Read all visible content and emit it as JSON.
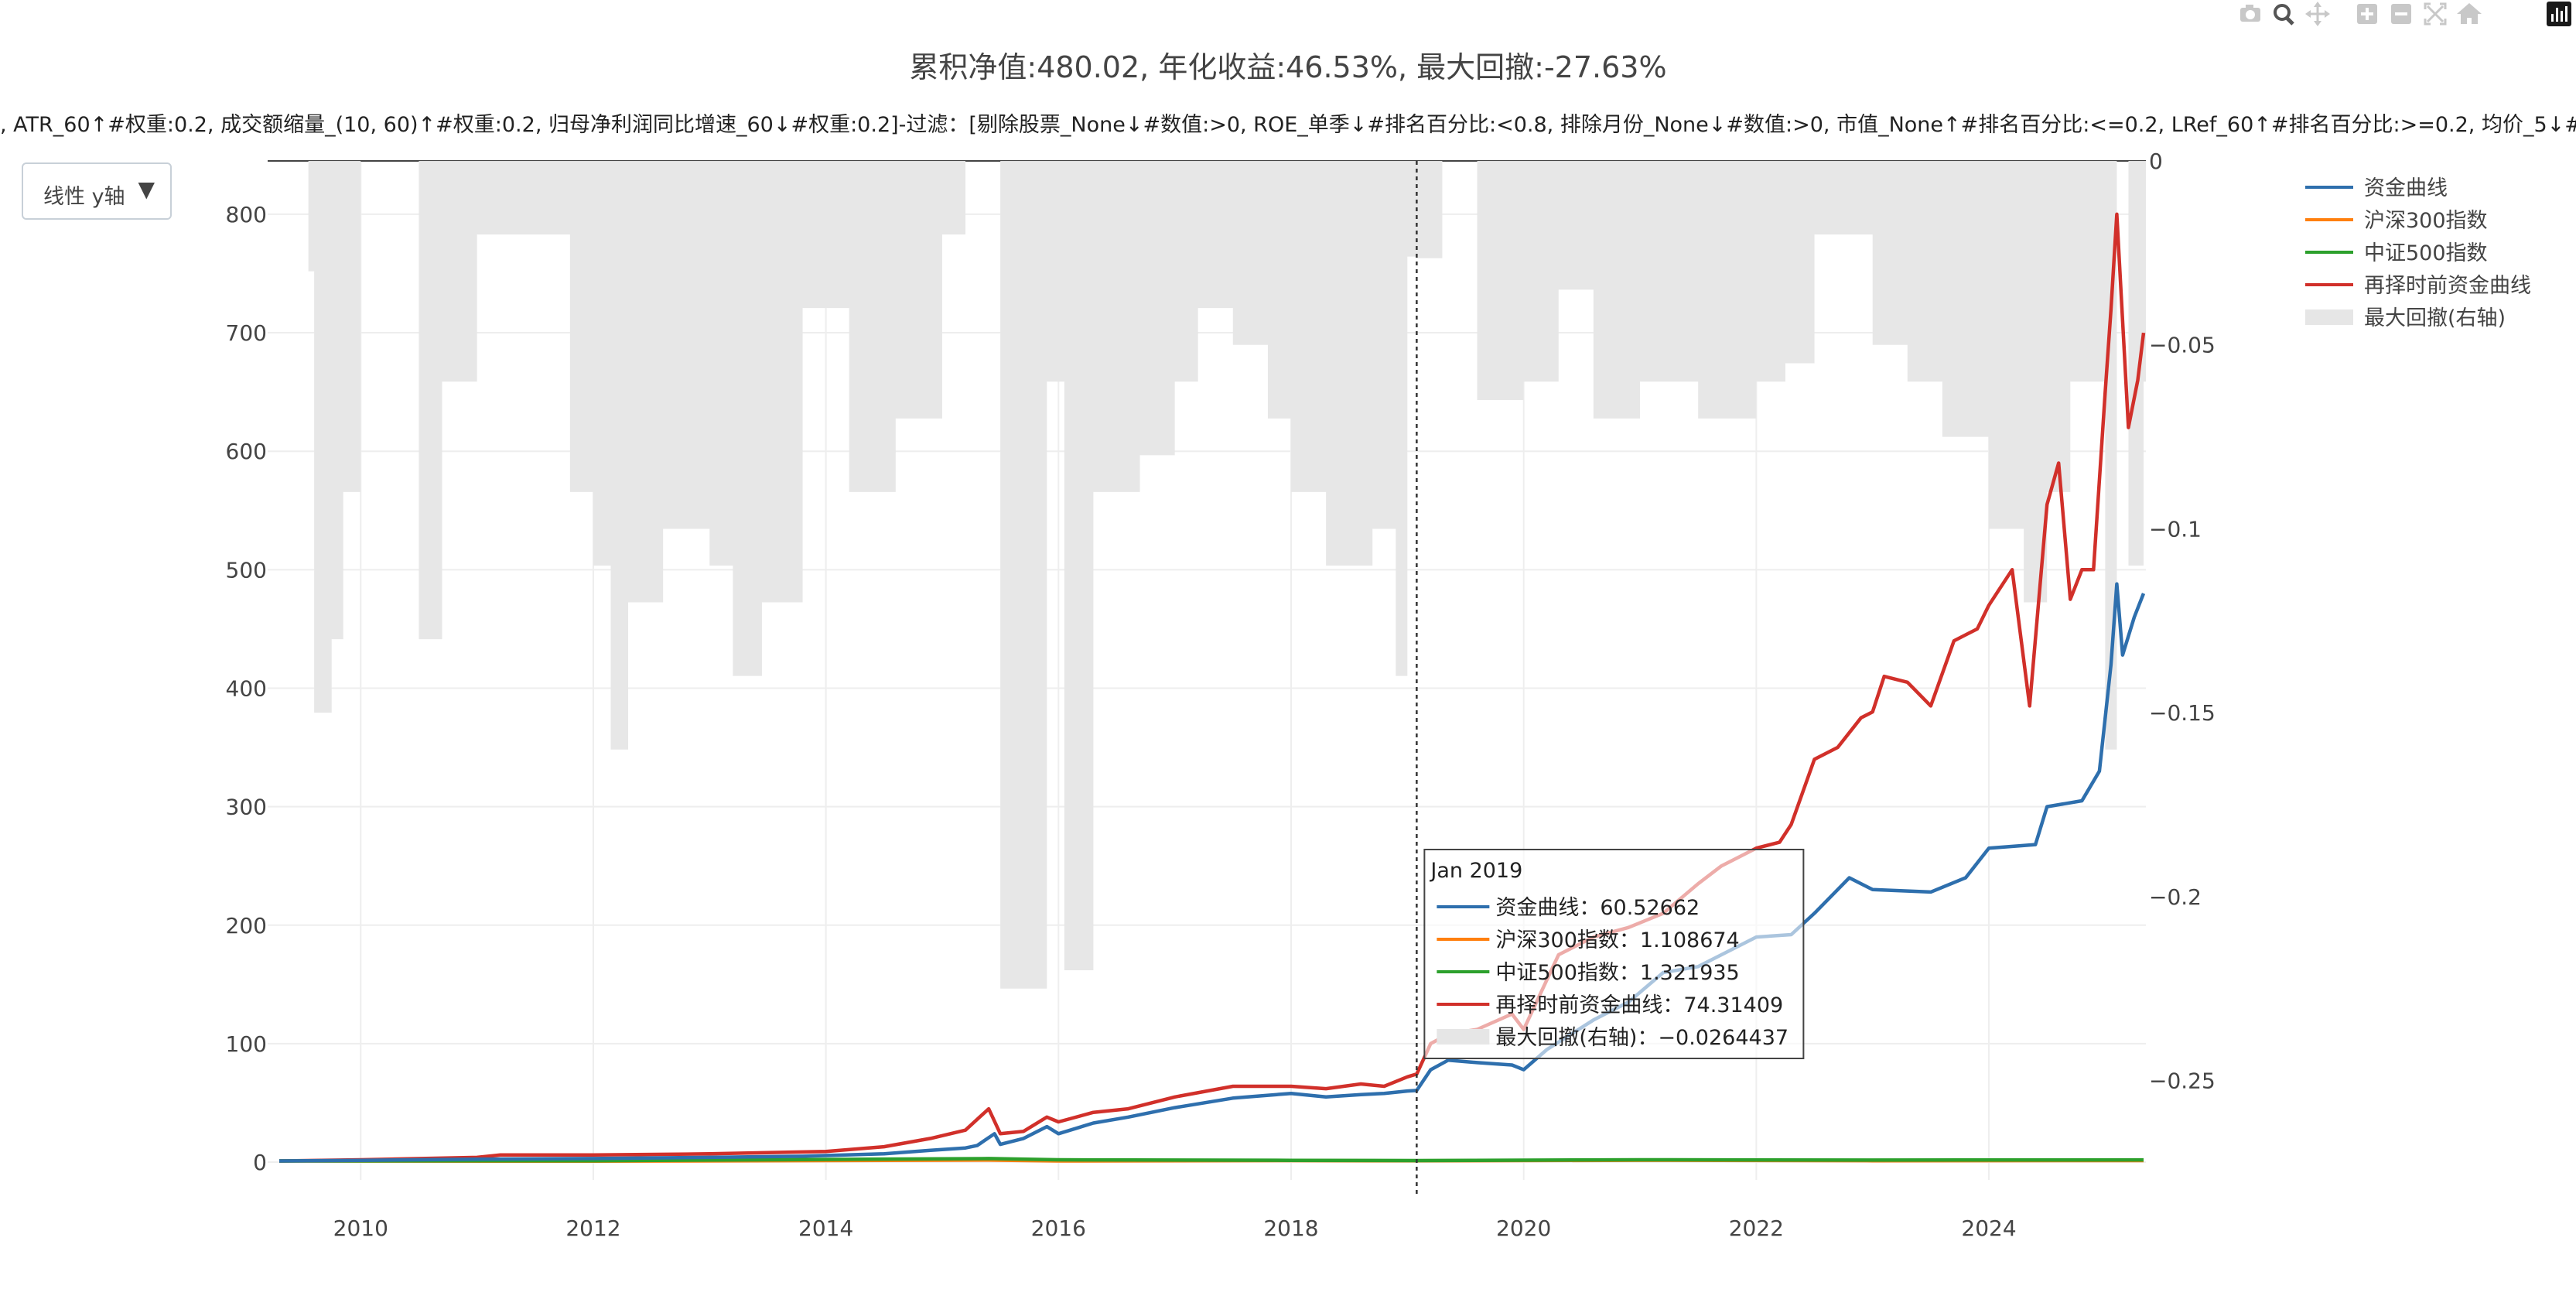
{
  "title": "累积净值:480.02, 年化收益:46.53%, 最大回撤:-27.63%",
  "subtitle": ", ATR_60↑#权重:0.2, 成交额缩量_(10, 60)↑#权重:0.2, 归母净利润同比增速_60↓#权重:0.2]-过滤：[剔除股票_None↓#数值:>0, ROE_单季↓#排名百分比:<0.8, 排除月份_None↓#数值:>0, 市值_None↑#排名百分比:<=0.2, LRef_60↑#排名百分比:>=0.2, 均价_5↓#数值",
  "dropdown": {
    "label": "线性 y轴",
    "arrow": "▼"
  },
  "modebar_icons": [
    "camera-icon",
    "zoom-icon",
    "pan-icon",
    "zoom-in-icon",
    "zoom-out-icon",
    "autoscale-icon",
    "reset-axes-icon",
    "plotly-logo-icon"
  ],
  "chart_data": {
    "type": "line",
    "x_axis": {
      "range": [
        2009.2,
        2025.35
      ],
      "ticks": [
        2010,
        2012,
        2014,
        2016,
        2018,
        2020,
        2022,
        2024
      ]
    },
    "y_axis_left": {
      "range": [
        -15,
        845
      ],
      "ticks": [
        0,
        100,
        200,
        300,
        400,
        500,
        600,
        700,
        800
      ]
    },
    "y_axis_right": {
      "range": [
        -0.277,
        0
      ],
      "ticks": [
        0,
        -0.05,
        -0.1,
        -0.15,
        -0.2,
        -0.25
      ],
      "tick_labels": [
        "0",
        "−0.05",
        "−0.1",
        "−0.15",
        "−0.2",
        "−0.25"
      ]
    },
    "grid": true,
    "legend_position": "top-right",
    "series": [
      {
        "name": "资金曲线",
        "color": "#2e6fad",
        "points": [
          [
            2009.3,
            1
          ],
          [
            2010.0,
            1.5
          ],
          [
            2011.0,
            2.5
          ],
          [
            2012.0,
            3
          ],
          [
            2013.0,
            4
          ],
          [
            2013.8,
            5
          ],
          [
            2014.5,
            7
          ],
          [
            2014.9,
            10
          ],
          [
            2015.2,
            12
          ],
          [
            2015.3,
            14
          ],
          [
            2015.45,
            24
          ],
          [
            2015.5,
            15
          ],
          [
            2015.7,
            20
          ],
          [
            2015.9,
            30
          ],
          [
            2016.0,
            24
          ],
          [
            2016.3,
            33
          ],
          [
            2016.6,
            38
          ],
          [
            2017.0,
            46
          ],
          [
            2017.5,
            54
          ],
          [
            2018.0,
            58
          ],
          [
            2018.3,
            55
          ],
          [
            2018.6,
            57
          ],
          [
            2018.8,
            58
          ],
          [
            2019.0,
            60
          ],
          [
            2019.08,
            60.5
          ],
          [
            2019.2,
            78
          ],
          [
            2019.35,
            86
          ],
          [
            2019.6,
            84
          ],
          [
            2019.9,
            82
          ],
          [
            2020.0,
            78
          ],
          [
            2020.2,
            95
          ],
          [
            2020.6,
            120
          ],
          [
            2020.9,
            135
          ],
          [
            2021.2,
            160
          ],
          [
            2021.5,
            165
          ],
          [
            2021.7,
            175
          ],
          [
            2022.0,
            190
          ],
          [
            2022.3,
            192
          ],
          [
            2022.5,
            210
          ],
          [
            2022.8,
            240
          ],
          [
            2023.0,
            230
          ],
          [
            2023.5,
            228
          ],
          [
            2023.8,
            240
          ],
          [
            2024.0,
            265
          ],
          [
            2024.4,
            268
          ],
          [
            2024.5,
            300
          ],
          [
            2024.8,
            305
          ],
          [
            2024.95,
            330
          ],
          [
            2025.05,
            420
          ],
          [
            2025.1,
            488
          ],
          [
            2025.15,
            428
          ],
          [
            2025.25,
            460
          ],
          [
            2025.33,
            480
          ]
        ]
      },
      {
        "name": "沪深300指数",
        "color": "#ff7f0e",
        "points": [
          [
            2009.3,
            1.0
          ],
          [
            2012.0,
            0.8
          ],
          [
            2015.4,
            1.7
          ],
          [
            2016.0,
            1.0
          ],
          [
            2018.0,
            1.3
          ],
          [
            2019.08,
            1.108674
          ],
          [
            2021.0,
            1.6
          ],
          [
            2023.0,
            1.2
          ],
          [
            2025.33,
            1.3
          ]
        ]
      },
      {
        "name": "中证500指数",
        "color": "#2ca02c",
        "points": [
          [
            2009.3,
            1.0
          ],
          [
            2012.0,
            1.2
          ],
          [
            2015.4,
            3.0
          ],
          [
            2016.0,
            2.0
          ],
          [
            2018.0,
            1.5
          ],
          [
            2019.08,
            1.321935
          ],
          [
            2021.0,
            2.0
          ],
          [
            2023.0,
            1.7
          ],
          [
            2025.33,
            1.9
          ]
        ]
      },
      {
        "name": "再择时前资金曲线",
        "color": "#d1302a",
        "points": [
          [
            2009.3,
            1
          ],
          [
            2010.0,
            2
          ],
          [
            2011.0,
            4
          ],
          [
            2011.2,
            6
          ],
          [
            2012.0,
            6
          ],
          [
            2013.0,
            7
          ],
          [
            2014.0,
            9
          ],
          [
            2014.5,
            13
          ],
          [
            2014.9,
            20
          ],
          [
            2015.2,
            27
          ],
          [
            2015.4,
            45
          ],
          [
            2015.5,
            24
          ],
          [
            2015.7,
            26
          ],
          [
            2015.9,
            38
          ],
          [
            2016.0,
            34
          ],
          [
            2016.3,
            42
          ],
          [
            2016.6,
            45
          ],
          [
            2017.0,
            55
          ],
          [
            2017.5,
            64
          ],
          [
            2018.0,
            64
          ],
          [
            2018.3,
            62
          ],
          [
            2018.6,
            66
          ],
          [
            2018.8,
            64
          ],
          [
            2019.0,
            72
          ],
          [
            2019.08,
            74.3
          ],
          [
            2019.2,
            100
          ],
          [
            2019.35,
            108
          ],
          [
            2019.6,
            112
          ],
          [
            2019.9,
            125
          ],
          [
            2020.0,
            112
          ],
          [
            2020.3,
            175
          ],
          [
            2020.6,
            190
          ],
          [
            2020.9,
            198
          ],
          [
            2021.2,
            210
          ],
          [
            2021.5,
            235
          ],
          [
            2021.7,
            250
          ],
          [
            2022.0,
            265
          ],
          [
            2022.2,
            270
          ],
          [
            2022.3,
            285
          ],
          [
            2022.5,
            340
          ],
          [
            2022.7,
            350
          ],
          [
            2022.9,
            375
          ],
          [
            2023.0,
            380
          ],
          [
            2023.1,
            410
          ],
          [
            2023.3,
            405
          ],
          [
            2023.5,
            385
          ],
          [
            2023.7,
            440
          ],
          [
            2023.9,
            450
          ],
          [
            2024.0,
            470
          ],
          [
            2024.2,
            500
          ],
          [
            2024.35,
            385
          ],
          [
            2024.5,
            555
          ],
          [
            2024.6,
            590
          ],
          [
            2024.7,
            475
          ],
          [
            2024.8,
            500
          ],
          [
            2024.9,
            500
          ],
          [
            2025.0,
            650
          ],
          [
            2025.05,
            720
          ],
          [
            2025.1,
            800
          ],
          [
            2025.2,
            620
          ],
          [
            2025.28,
            660
          ],
          [
            2025.33,
            700
          ]
        ]
      },
      {
        "name": "最大回撤(右轴)",
        "color": "#e6e6e6",
        "points": [
          [
            2009.3,
            0
          ],
          [
            2009.55,
            -0.03
          ],
          [
            2009.6,
            -0.15
          ],
          [
            2009.75,
            -0.13
          ],
          [
            2009.85,
            -0.09
          ],
          [
            2010.0,
            0
          ],
          [
            2010.5,
            -0.13
          ],
          [
            2010.7,
            -0.06
          ],
          [
            2011.0,
            -0.02
          ],
          [
            2011.4,
            -0.02
          ],
          [
            2011.8,
            -0.09
          ],
          [
            2012.0,
            -0.11
          ],
          [
            2012.15,
            -0.16
          ],
          [
            2012.3,
            -0.12
          ],
          [
            2012.6,
            -0.1
          ],
          [
            2013.0,
            -0.11
          ],
          [
            2013.2,
            -0.14
          ],
          [
            2013.45,
            -0.12
          ],
          [
            2013.8,
            -0.04
          ],
          [
            2014.2,
            -0.09
          ],
          [
            2014.6,
            -0.07
          ],
          [
            2015.0,
            -0.02
          ],
          [
            2015.2,
            0
          ],
          [
            2015.5,
            -0.225
          ],
          [
            2015.9,
            -0.06
          ],
          [
            2016.05,
            -0.22
          ],
          [
            2016.3,
            -0.09
          ],
          [
            2016.7,
            -0.08
          ],
          [
            2017.0,
            -0.06
          ],
          [
            2017.2,
            -0.04
          ],
          [
            2017.5,
            -0.05
          ],
          [
            2017.8,
            -0.07
          ],
          [
            2018.0,
            -0.09
          ],
          [
            2018.3,
            -0.11
          ],
          [
            2018.7,
            -0.1
          ],
          [
            2018.9,
            -0.14
          ],
          [
            2019.0,
            -0.026
          ],
          [
            2019.08,
            -0.0264437
          ],
          [
            2019.3,
            0
          ],
          [
            2019.6,
            -0.065
          ],
          [
            2020.0,
            -0.06
          ],
          [
            2020.3,
            -0.035
          ],
          [
            2020.6,
            -0.07
          ],
          [
            2021.0,
            -0.06
          ],
          [
            2021.5,
            -0.07
          ],
          [
            2022.0,
            -0.06
          ],
          [
            2022.25,
            -0.055
          ],
          [
            2022.5,
            -0.02
          ],
          [
            2023.0,
            -0.05
          ],
          [
            2023.3,
            -0.06
          ],
          [
            2023.6,
            -0.075
          ],
          [
            2024.0,
            -0.1
          ],
          [
            2024.3,
            -0.12
          ],
          [
            2024.5,
            -0.09
          ],
          [
            2024.7,
            -0.06
          ],
          [
            2025.0,
            -0.16
          ],
          [
            2025.1,
            0
          ],
          [
            2025.2,
            -0.11
          ],
          [
            2025.33,
            -0.06
          ]
        ]
      }
    ],
    "hover": {
      "x": 2019.08,
      "date": "Jan 2019",
      "rows": [
        {
          "label": "资金曲线：60.52662",
          "color": "#2e6fad"
        },
        {
          "label": "沪深300指数：1.108674",
          "color": "#ff7f0e"
        },
        {
          "label": "中证500指数：1.321935",
          "color": "#2ca02c"
        },
        {
          "label": "再择时前资金曲线：74.31409",
          "color": "#d1302a"
        },
        {
          "label": "最大回撤(右轴)：−0.0264437",
          "color": "#e6e6e6"
        }
      ]
    }
  }
}
